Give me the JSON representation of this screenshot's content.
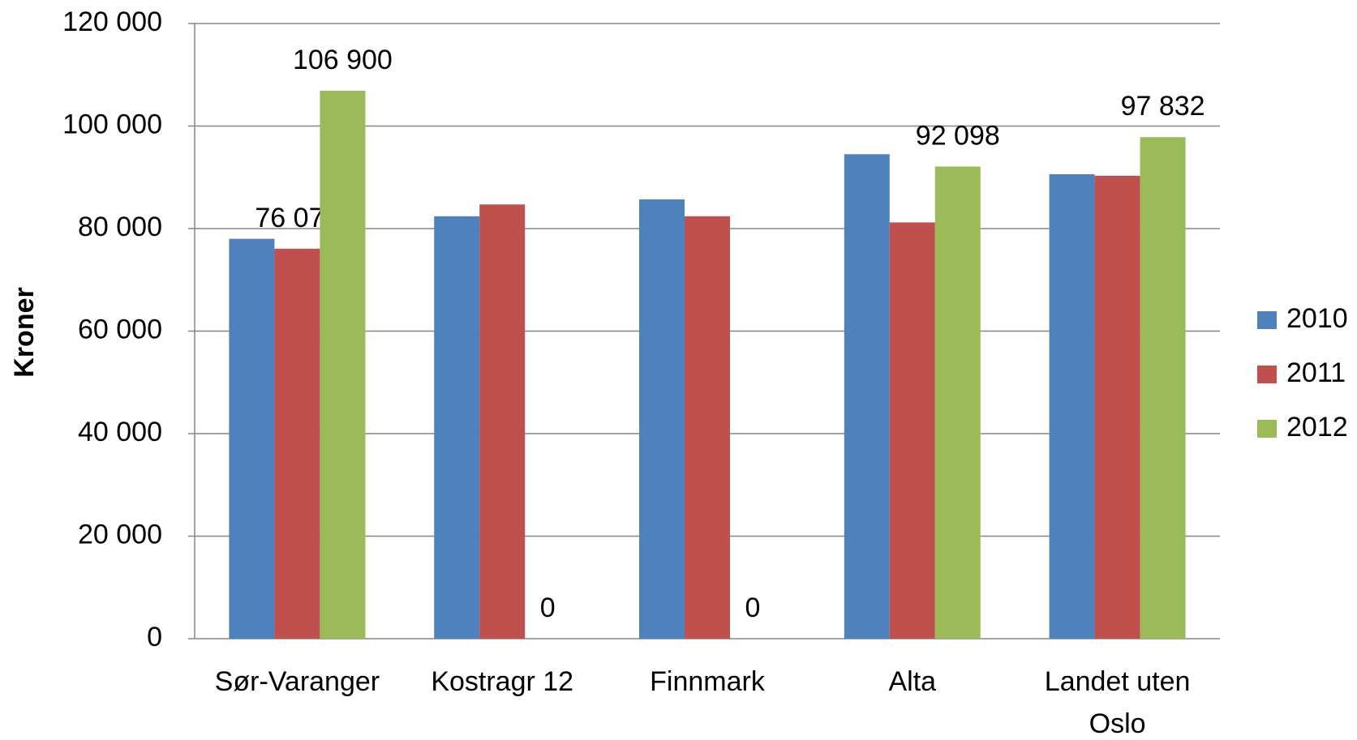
{
  "chart_data": {
    "type": "bar",
    "y_label": "Kroner",
    "categories": [
      "Sør-Varanger",
      "Kostragr 12",
      "Finnmark",
      "Alta",
      "Landet uten Oslo"
    ],
    "series": [
      {
        "name": "2010",
        "color": "#4f81bd",
        "values": [
          78000,
          82400,
          85700,
          94500,
          90600
        ]
      },
      {
        "name": "2011",
        "color": "#c0504d",
        "values": [
          76070,
          84700,
          82400,
          81200,
          90300
        ],
        "value_labels": [
          "76 070",
          null,
          null,
          null,
          null
        ]
      },
      {
        "name": "2012",
        "color": "#9bbb59",
        "values": [
          106900,
          0,
          0,
          92098,
          97832
        ],
        "value_labels": [
          "106 900",
          "0",
          "0",
          "92 098",
          "97 832"
        ]
      }
    ],
    "ylim": [
      0,
      120000
    ],
    "yticks": [
      0,
      {
        "value": 20000,
        "label": "20 000"
      },
      {
        "value": 40000,
        "label": "40 000"
      },
      {
        "value": 60000,
        "label": "60 000"
      },
      {
        "value": 80000,
        "label": "80 000"
      },
      {
        "value": 100000,
        "label": "100 000"
      },
      {
        "value": 120000,
        "label": "120 000"
      }
    ],
    "grid": true,
    "legend": "right"
  }
}
